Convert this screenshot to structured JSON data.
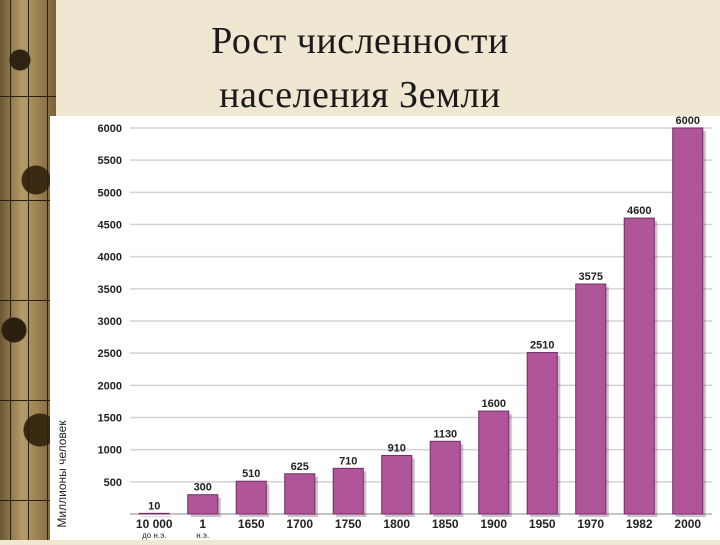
{
  "title": {
    "line1": "Рост численности",
    "line2": "населения Земли"
  },
  "chart_data": {
    "type": "bar",
    "ylabel": "Миллионы человек",
    "ylim": [
      0,
      6000
    ],
    "yticks": [
      500,
      1000,
      1500,
      2000,
      2500,
      3000,
      3500,
      4000,
      4500,
      5000,
      5500,
      6000
    ],
    "grid": true,
    "bar_color": "#b0559a",
    "categories": [
      {
        "line1": "10 000",
        "line2": "до н.э."
      },
      {
        "line1": "1",
        "line2": "н.э."
      },
      {
        "line1": "1650",
        "line2": ""
      },
      {
        "line1": "1700",
        "line2": ""
      },
      {
        "line1": "1750",
        "line2": ""
      },
      {
        "line1": "1800",
        "line2": ""
      },
      {
        "line1": "1850",
        "line2": ""
      },
      {
        "line1": "1900",
        "line2": ""
      },
      {
        "line1": "1950",
        "line2": ""
      },
      {
        "line1": "1970",
        "line2": ""
      },
      {
        "line1": "1982",
        "line2": ""
      },
      {
        "line1": "2000",
        "line2": ""
      }
    ],
    "values": [
      10,
      300,
      510,
      625,
      710,
      910,
      1130,
      1600,
      2510,
      3575,
      4600,
      6000
    ],
    "labels": [
      "10",
      "300",
      "510",
      "625",
      "710",
      "910",
      "1130",
      "1600",
      "2510",
      "3575",
      "4600",
      "6000"
    ]
  }
}
